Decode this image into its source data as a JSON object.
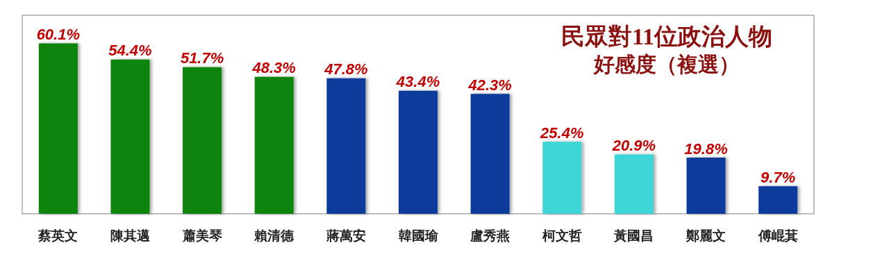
{
  "chart_data": {
    "type": "bar",
    "title": "民眾對11位政治人物",
    "subtitle": "好感度（複選）",
    "categories": [
      "蔡英文",
      "陳其邁",
      "蕭美琴",
      "賴清德",
      "蔣萬安",
      "韓國瑜",
      "盧秀燕",
      "柯文哲",
      "黃國昌",
      "鄭麗文",
      "傅崐萁"
    ],
    "values": [
      60.1,
      54.4,
      51.7,
      48.3,
      47.8,
      43.4,
      42.3,
      25.4,
      20.9,
      19.8,
      9.7
    ],
    "value_labels": [
      "60.1%",
      "54.4%",
      "51.7%",
      "48.3%",
      "47.8%",
      "43.4%",
      "42.3%",
      "25.4%",
      "20.9%",
      "19.8%",
      "9.7%"
    ],
    "colors": [
      "#078407",
      "#078407",
      "#078407",
      "#078407",
      "#0a3a9c",
      "#0a3a9c",
      "#0a3a9c",
      "#3dd6d6",
      "#3dd6d6",
      "#0a3a9c",
      "#0a3a9c"
    ],
    "grid": false
  }
}
